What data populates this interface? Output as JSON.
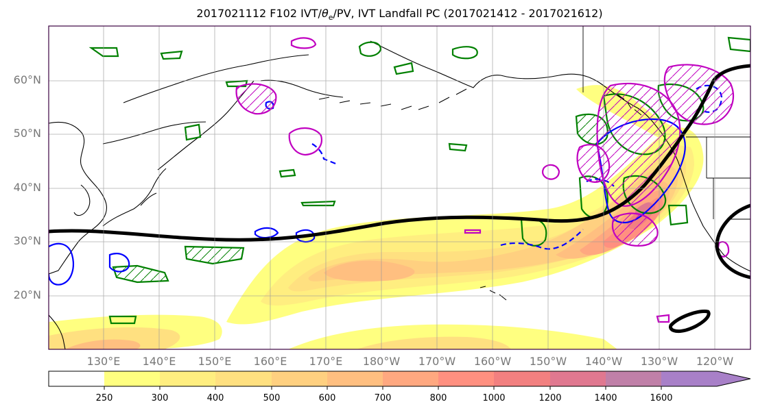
{
  "title": {
    "prefix": "2017021112 F102 IVT/",
    "theta": "θ",
    "theta_sub": "e",
    "suffix": "/PV, IVT Landfall PC (2017021412 - 2017021612)"
  },
  "lat_labels": [
    "60°N",
    "50°N",
    "40°N",
    "30°N",
    "20°N"
  ],
  "lon_labels": [
    "130°E",
    "140°E",
    "150°E",
    "160°E",
    "170°E",
    "180°W",
    "170°W",
    "160°W",
    "150°W",
    "140°W",
    "130°W",
    "120°W"
  ],
  "colorbar": {
    "levels": [
      "250",
      "300",
      "400",
      "500",
      "600",
      "700",
      "800",
      "1000",
      "1200",
      "1400",
      "1600"
    ],
    "colors": [
      "#ffff80",
      "#ffee80",
      "#ffe080",
      "#ffd080",
      "#ffbf80",
      "#ffa880",
      "#ff9080",
      "#f28080",
      "#e07890",
      "#c080a8",
      "#a880c8"
    ]
  },
  "colors": {
    "green_contour": "#008000",
    "blue_contour": "#0000ff",
    "magenta_contour": "#c000c0",
    "black_line": "#000000",
    "frame": "#3a0040"
  }
}
